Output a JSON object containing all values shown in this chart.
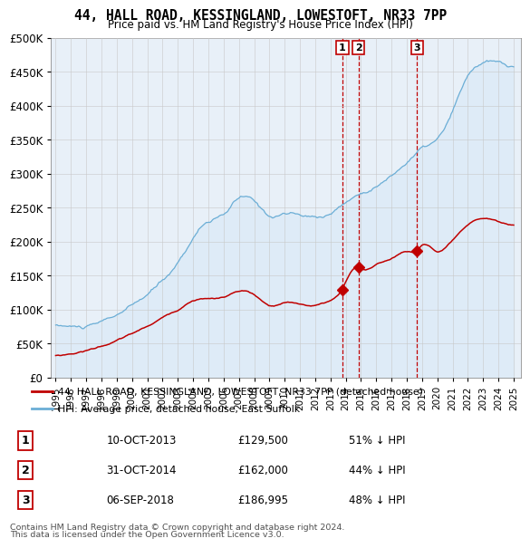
{
  "title": "44, HALL ROAD, KESSINGLAND, LOWESTOFT, NR33 7PP",
  "subtitle": "Price paid vs. HM Land Registry's House Price Index (HPI)",
  "hpi_color": "#6baed6",
  "hpi_fill_color": "#deebf7",
  "price_color": "#c00000",
  "vline_color": "#c00000",
  "background_color": "#ffffff",
  "grid_color": "#c8c8c8",
  "transaction_box_color": "#c00000",
  "transactions": [
    {
      "label": "1",
      "date": "10-OCT-2013",
      "price": "£129,500",
      "pct": "51% ↓ HPI",
      "x_year": 2013.78,
      "price_val": 129500
    },
    {
      "label": "2",
      "date": "31-OCT-2014",
      "price": "£162,000",
      "pct": "44% ↓ HPI",
      "x_year": 2014.83,
      "price_val": 162000
    },
    {
      "label": "3",
      "date": "06-SEP-2018",
      "price": "£186,995",
      "pct": "48% ↓ HPI",
      "x_year": 2018.68,
      "price_val": 186995
    }
  ],
  "legend_entries": [
    "44, HALL ROAD, KESSINGLAND, LOWESTOFT, NR33 7PP (detached house)",
    "HPI: Average price, detached house, East Suffolk"
  ],
  "footnote1": "Contains HM Land Registry data © Crown copyright and database right 2024.",
  "footnote2": "This data is licensed under the Open Government Licence v3.0.",
  "xlim_start": 1994.7,
  "xlim_end": 2025.5,
  "ylim": [
    0,
    500000
  ],
  "yticks": [
    0,
    50000,
    100000,
    150000,
    200000,
    250000,
    300000,
    350000,
    400000,
    450000,
    500000
  ],
  "ytick_labels": [
    "£0",
    "£50K",
    "£100K",
    "£150K",
    "£200K",
    "£250K",
    "£300K",
    "£350K",
    "£400K",
    "£450K",
    "£500K"
  ]
}
